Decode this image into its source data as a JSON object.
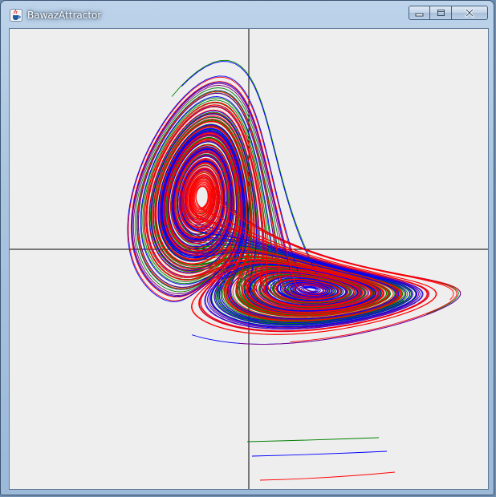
{
  "window": {
    "title": "BawazAttractor",
    "app_icon": "java-cup-icon",
    "buttons": {
      "minimize": "minimize-icon",
      "maximize": "maximize-icon",
      "close": "close-icon"
    }
  },
  "colors": {
    "background": "#eeeeee",
    "axes": "#000000",
    "series": [
      "#008000",
      "#0000ff",
      "#ff0000",
      "#800080"
    ]
  }
}
